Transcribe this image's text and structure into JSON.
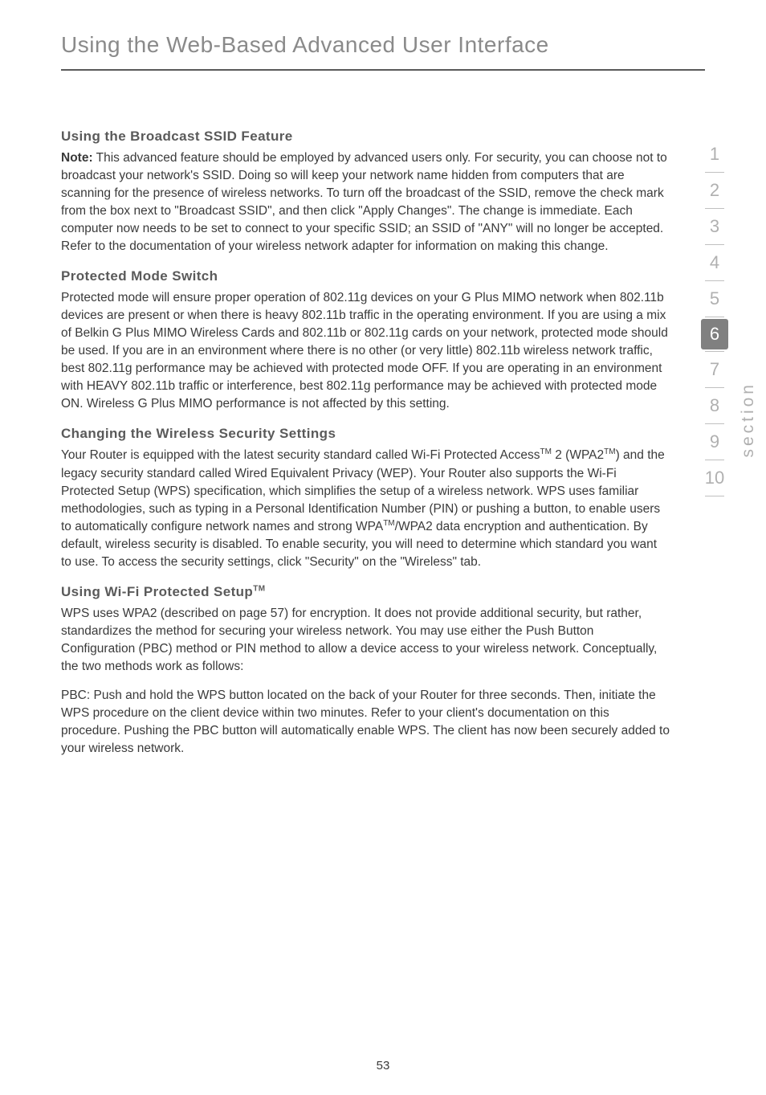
{
  "page": {
    "title": "Using the Web-Based Advanced User Interface",
    "pageNumber": "53"
  },
  "sidebar": {
    "items": [
      "1",
      "2",
      "3",
      "4",
      "5",
      "6",
      "7",
      "8",
      "9",
      "10"
    ],
    "activeIndex": 5,
    "sectionLabel": "section"
  },
  "sections": {
    "broadcast": {
      "heading": "Using the Broadcast SSID Feature",
      "noteLabel": "Note:",
      "body": " This advanced feature should be employed by advanced users only. For security, you can choose not to broadcast your network's SSID. Doing so will keep your network name hidden from computers that are scanning for the presence of wireless networks. To turn off the broadcast of the SSID, remove the check mark from the box next to \"Broadcast SSID\", and then click \"Apply Changes\". The change is immediate. Each computer now needs to be set to connect to your specific SSID; an SSID of \"ANY\" will no longer be accepted. Refer to the documentation of your wireless network adapter for information on making this change."
    },
    "protected": {
      "heading": "Protected Mode Switch",
      "body": "Protected mode will ensure proper operation of 802.11g devices on your G Plus MIMO network when 802.11b devices are present or when there is heavy 802.11b traffic in the operating environment. If you are using a mix of Belkin G Plus MIMO Wireless Cards and 802.11b or 802.11g cards on your network, protected mode should be used. If you are in an environment where there is no other (or very little) 802.11b wireless network traffic, best 802.11g performance may be achieved with protected mode OFF. If you are operating in an environment with HEAVY 802.11b traffic or interference, best 802.11g performance may be achieved with protected mode ON. Wireless G Plus MIMO performance is not affected by this setting."
    },
    "security": {
      "heading": "Changing the Wireless Security Settings",
      "body1": "Your Router is equipped with the latest security standard called Wi-Fi Protected Access",
      "tm1": "TM",
      "body2": " 2 (WPA2",
      "tm2": "TM",
      "body3": ") and the legacy security standard called Wired Equivalent Privacy (WEP). Your Router also supports the Wi-Fi Protected Setup (WPS) specification, which simplifies the setup of a wireless network. WPS uses familiar methodologies, such as typing in a Personal Identification Number (PIN) or pushing a button, to enable users to automatically configure network names and strong WPA",
      "tm3": "TM",
      "body4": "/WPA2 data encryption and authentication. By default, wireless security is disabled. To enable security, you will need to determine which standard you want to use. To access the security settings, click \"Security\" on the \"Wireless\" tab."
    },
    "wps": {
      "heading": "Using Wi-Fi Protected Setup",
      "tm": "TM",
      "para1": "WPS uses WPA2 (described on page 57) for encryption. It does not provide additional security, but rather, standardizes the method for securing your wireless network. You may use either the Push Button Configuration (PBC) method or PIN method to allow a device access to your wireless network. Conceptually, the two methods work as follows:",
      "para2": "PBC: Push and hold the WPS button located on the back of your Router for three seconds. Then, initiate the WPS procedure on the client device within two minutes. Refer to your client's documentation on this procedure. Pushing the PBC button will automatically enable WPS. The client has now been securely added to your wireless network."
    }
  },
  "colors": {
    "titleColor": "#8a8a8a",
    "bodyColor": "#3a3a3a",
    "headingColor": "#5a5a5a",
    "sidebarInactive": "#b0b0b0",
    "sidebarActiveBg": "#808080",
    "sidebarActiveFg": "#ffffff",
    "ruleColor": "#5a5a5a",
    "background": "#ffffff"
  }
}
